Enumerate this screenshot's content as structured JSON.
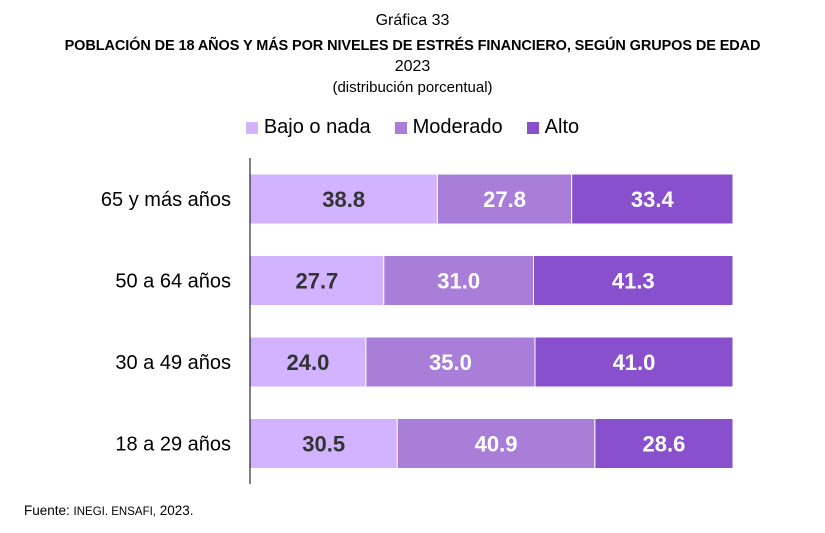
{
  "header": {
    "chart_label": "Gráfica 33",
    "title": "POBLACIÓN DE 18 AÑOS Y MÁS POR NIVELES DE ESTRÉS FINANCIERO, SEGÚN GRUPOS DE EDAD",
    "year": "2023",
    "subtitle": "(distribución porcentual)"
  },
  "legend": [
    {
      "label": "Bajo o nada",
      "color": "#d1b3ff"
    },
    {
      "label": "Moderado",
      "color": "#a87ed9"
    },
    {
      "label": "Alto",
      "color": "#8850cc"
    }
  ],
  "chart_data": {
    "type": "bar",
    "orientation": "horizontal",
    "stacked": true,
    "title": "POBLACIÓN DE 18 AÑOS Y MÁS POR NIVELES DE ESTRÉS FINANCIERO, SEGÚN GRUPOS DE EDAD",
    "categories": [
      "65 y más años",
      "50 a 64 años",
      "30 a 49 años",
      "18 a 29 años"
    ],
    "series": [
      {
        "name": "Bajo o nada",
        "color": "#d1b3ff",
        "label_color": "#333333",
        "values": [
          38.8,
          27.7,
          24.0,
          30.5
        ],
        "labels": [
          "38.8",
          "27.7",
          "24.0",
          "30.5"
        ]
      },
      {
        "name": "Moderado",
        "color": "#a87ed9",
        "label_color": "#ffffff",
        "values": [
          27.8,
          31.0,
          35.0,
          40.9
        ],
        "labels": [
          "27.8",
          "31.0",
          "35.0",
          "40.9"
        ]
      },
      {
        "name": "Alto",
        "color": "#8850cc",
        "label_color": "#ffffff",
        "values": [
          33.4,
          41.3,
          41.0,
          28.6
        ],
        "labels": [
          "33.4",
          "41.3",
          "41.0",
          "28.6"
        ]
      }
    ],
    "xlim": [
      0,
      100
    ],
    "xlabel": "",
    "ylabel": ""
  },
  "footer": {
    "source_label": "Fuente:",
    "source_org": "INEGI. ENSAFI,",
    "source_year": "2023."
  }
}
